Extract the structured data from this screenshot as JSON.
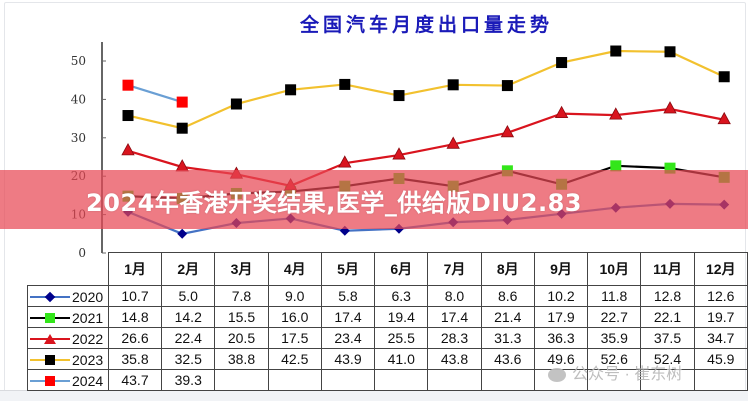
{
  "chart_data": {
    "type": "line",
    "title": "全国汽车月度出口量走势",
    "xlabel": "",
    "ylabel": "",
    "ylim": [
      0,
      55
    ],
    "yticks": [
      0,
      10,
      20,
      30,
      40,
      50
    ],
    "grid": false,
    "legend_position": "data-table-left",
    "categories": [
      "1月",
      "2月",
      "3月",
      "4月",
      "5月",
      "6月",
      "7月",
      "8月",
      "9月",
      "10月",
      "11月",
      "12月"
    ],
    "series": [
      {
        "name": "2020",
        "line_color": "#4472c4",
        "marker": "diamond",
        "marker_color": "#00008b",
        "values": [
          10.7,
          5.0,
          7.8,
          9.0,
          5.8,
          6.3,
          8.0,
          8.6,
          10.2,
          11.8,
          12.8,
          12.6
        ]
      },
      {
        "name": "2021",
        "line_color": "#000000",
        "marker": "square",
        "marker_color": "#33e61a",
        "values": [
          14.8,
          14.2,
          15.5,
          16.0,
          17.4,
          19.4,
          17.4,
          21.4,
          17.9,
          22.7,
          22.1,
          19.7
        ]
      },
      {
        "name": "2022",
        "line_color": "#d9141e",
        "marker": "triangle",
        "marker_color": "#d9141e",
        "values": [
          26.6,
          22.4,
          20.5,
          17.5,
          23.4,
          25.5,
          28.3,
          31.3,
          36.3,
          35.9,
          37.5,
          34.7
        ]
      },
      {
        "name": "2023",
        "line_color": "#f2c12e",
        "marker": "square",
        "marker_color": "#000000",
        "values": [
          35.8,
          32.5,
          38.8,
          42.5,
          43.9,
          41.0,
          43.8,
          43.6,
          49.6,
          52.6,
          52.4,
          45.9
        ]
      },
      {
        "name": "2024",
        "line_color": "#6a9fd4",
        "marker": "square",
        "marker_color": "#ff0000",
        "values": [
          43.7,
          39.3,
          null,
          null,
          null,
          null,
          null,
          null,
          null,
          null,
          null,
          null
        ]
      }
    ]
  },
  "table": {
    "headers": [
      "1月",
      "2月",
      "3月",
      "4月",
      "5月",
      "6月",
      "7月",
      "8月",
      "9月",
      "10月",
      "11月",
      "12月"
    ],
    "rows": [
      {
        "label": "2020",
        "cells": [
          "10.7",
          "5.0",
          "7.8",
          "9.0",
          "5.8",
          "6.3",
          "8.0",
          "8.6",
          "10.2",
          "11.8",
          "12.8",
          "12.6"
        ]
      },
      {
        "label": "2021",
        "cells": [
          "14.8",
          "14.2",
          "15.5",
          "16.0",
          "17.4",
          "19.4",
          "17.4",
          "21.4",
          "17.9",
          "22.7",
          "22.1",
          "19.7"
        ]
      },
      {
        "label": "2022",
        "cells": [
          "26.6",
          "22.4",
          "20.5",
          "17.5",
          "23.4",
          "25.5",
          "28.3",
          "31.3",
          "36.3",
          "35.9",
          "37.5",
          "34.7"
        ]
      },
      {
        "label": "2023",
        "cells": [
          "35.8",
          "32.5",
          "38.8",
          "42.5",
          "43.9",
          "41.0",
          "43.8",
          "43.6",
          "49.6",
          "52.6",
          "52.4",
          "45.9"
        ]
      },
      {
        "label": "2024",
        "cells": [
          "43.7",
          "39.3",
          "",
          "",
          "",
          "",
          "",
          "",
          "",
          "",
          "",
          ""
        ]
      }
    ]
  },
  "overlay": {
    "banner_text": "2024年香港开奖结果,医学_供给版DIU2.83",
    "watermark": "公众号 · 崔东树"
  }
}
